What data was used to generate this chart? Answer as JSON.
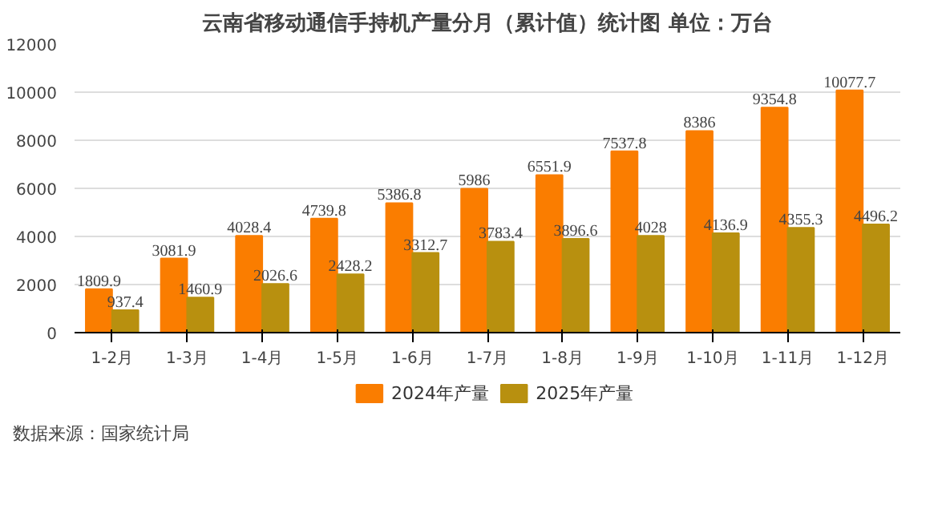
{
  "chart_data": {
    "type": "bar",
    "title": "云南省移动通信手持机产量分月（累计值）统计图 单位：万台",
    "categories": [
      "1-2月",
      "1-3月",
      "1-4月",
      "1-5月",
      "1-6月",
      "1-7月",
      "1-8月",
      "1-9月",
      "1-10月",
      "1-11月",
      "1-12月"
    ],
    "series": [
      {
        "name": "2024年产量",
        "color": "#fa7d00",
        "values": [
          1809.9,
          3081.9,
          4028.4,
          4739.8,
          5386.8,
          5986,
          6551.9,
          7537.8,
          8386,
          9354.8,
          10077.7
        ]
      },
      {
        "name": "2025年产量",
        "color": "#b8900f",
        "values": [
          937.4,
          1460.9,
          2026.6,
          2428.2,
          3312.7,
          3783.4,
          3896.6,
          4028,
          4136.9,
          4355.3,
          4496.2
        ]
      }
    ],
    "ylim": [
      0,
      12000
    ],
    "yticks": [
      0,
      2000,
      4000,
      6000,
      8000,
      10000,
      12000
    ],
    "grid": "y",
    "legend": "bottom",
    "data_labels": true,
    "annotations": [
      "数据来源：国家统计局"
    ]
  }
}
